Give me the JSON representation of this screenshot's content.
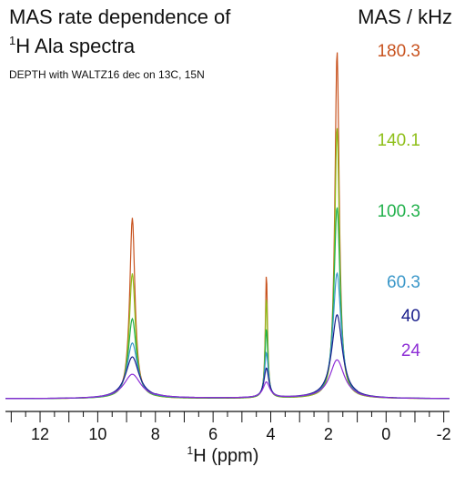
{
  "chart_data": {
    "type": "line",
    "title_line1": "MAS rate dependence of",
    "title_sup": "1",
    "title_line2": "H Ala spectra",
    "subtitle": "DEPTH with WALTZ16 dec on 13C, 15N",
    "legend_title": "MAS / kHz",
    "legend_placement": "right",
    "xlabel_sup": "1",
    "xlabel": "H (ppm)",
    "xlim": [
      13.2,
      -2.2
    ],
    "x_reversed": true,
    "x_ticks": [
      12,
      10,
      8,
      6,
      4,
      2,
      0,
      -2
    ],
    "x_minor_step": 0.5,
    "y_axis_shown": false,
    "grid": false,
    "ylim": [
      0,
      1
    ],
    "peaks_ppm": [
      8.8,
      4.15,
      1.7
    ],
    "series": [
      {
        "name": "180.3",
        "color": "#c8531f",
        "heights": [
          0.52,
          0.36,
          1.0
        ],
        "widths": [
          0.11,
          0.045,
          0.09
        ],
        "tail": 0.0
      },
      {
        "name": "140.1",
        "color": "#8fbf1a",
        "heights": [
          0.36,
          0.29,
          0.78
        ],
        "widths": [
          0.13,
          0.05,
          0.1
        ],
        "tail": 0.02
      },
      {
        "name": "100.3",
        "color": "#22b14c",
        "heights": [
          0.23,
          0.2,
          0.55
        ],
        "widths": [
          0.17,
          0.06,
          0.13
        ],
        "tail": 0.04
      },
      {
        "name": "60.3",
        "color": "#3a97c9",
        "heights": [
          0.16,
          0.13,
          0.36
        ],
        "widths": [
          0.22,
          0.08,
          0.17
        ],
        "tail": 0.05
      },
      {
        "name": "40",
        "color": "#1a1f8c",
        "heights": [
          0.12,
          0.085,
          0.24
        ],
        "widths": [
          0.28,
          0.1,
          0.22
        ],
        "tail": 0.06
      },
      {
        "name": "24",
        "color": "#8e2fd6",
        "heights": [
          0.07,
          0.045,
          0.11
        ],
        "widths": [
          0.36,
          0.14,
          0.3
        ],
        "tail": 0.07
      }
    ]
  }
}
